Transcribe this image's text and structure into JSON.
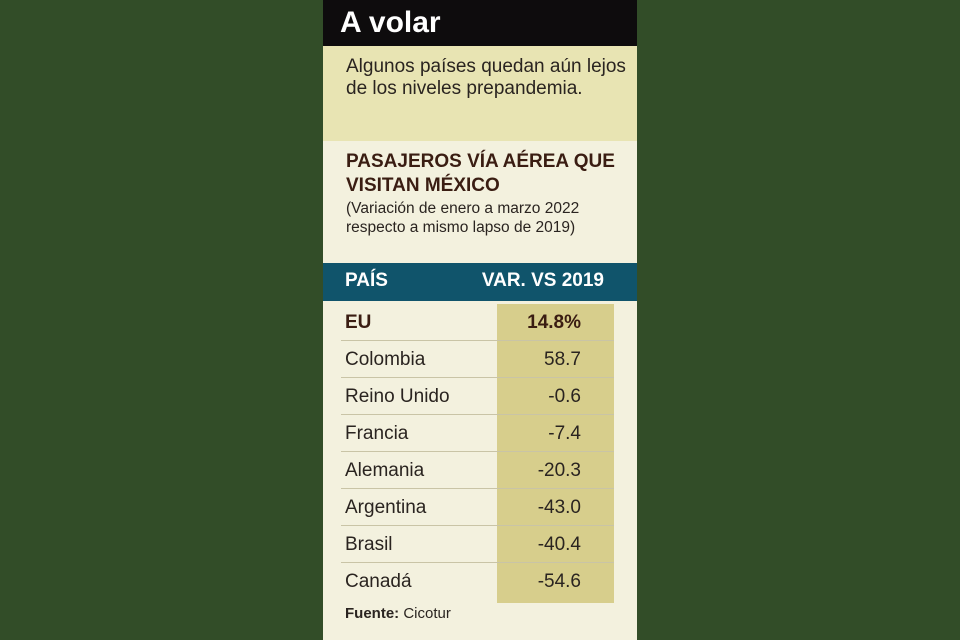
{
  "headline": "A volar",
  "deck": "Algunos países quedan aún lejos de los niveles prepandemia.",
  "chart_data": {
    "type": "table",
    "title": "PASAJEROS VÍA AÉREA QUE VISITAN MÉXICO",
    "subtitle": "(Variación de enero a marzo 2022 respecto a mismo lapso de 2019)",
    "columns": [
      "PAÍS",
      "VAR. VS 2019"
    ],
    "categories": [
      "EU",
      "Colombia",
      "Reino Unido",
      "Francia",
      "Alemania",
      "Argentina",
      "Brasil",
      "Canadá"
    ],
    "values": [
      14.8,
      58.7,
      -0.6,
      -7.4,
      -20.3,
      -43.0,
      -40.4,
      -54.6
    ],
    "value_labels": [
      "14.8%",
      "58.7",
      "-0.6",
      "-7.4",
      "-20.3",
      "-43.0",
      "-40.4",
      "-54.6"
    ],
    "highlight": "EU"
  },
  "source": {
    "label": "Fuente:",
    "text": "Cicotur"
  },
  "colors": {
    "background": "#324d28",
    "headline_bg": "#0e0c0d",
    "deck_bg": "#e8e4b3",
    "header_bg": "#10546b",
    "value_column_bg": "#d7ce8c",
    "title_text": "#3a1d12"
  }
}
